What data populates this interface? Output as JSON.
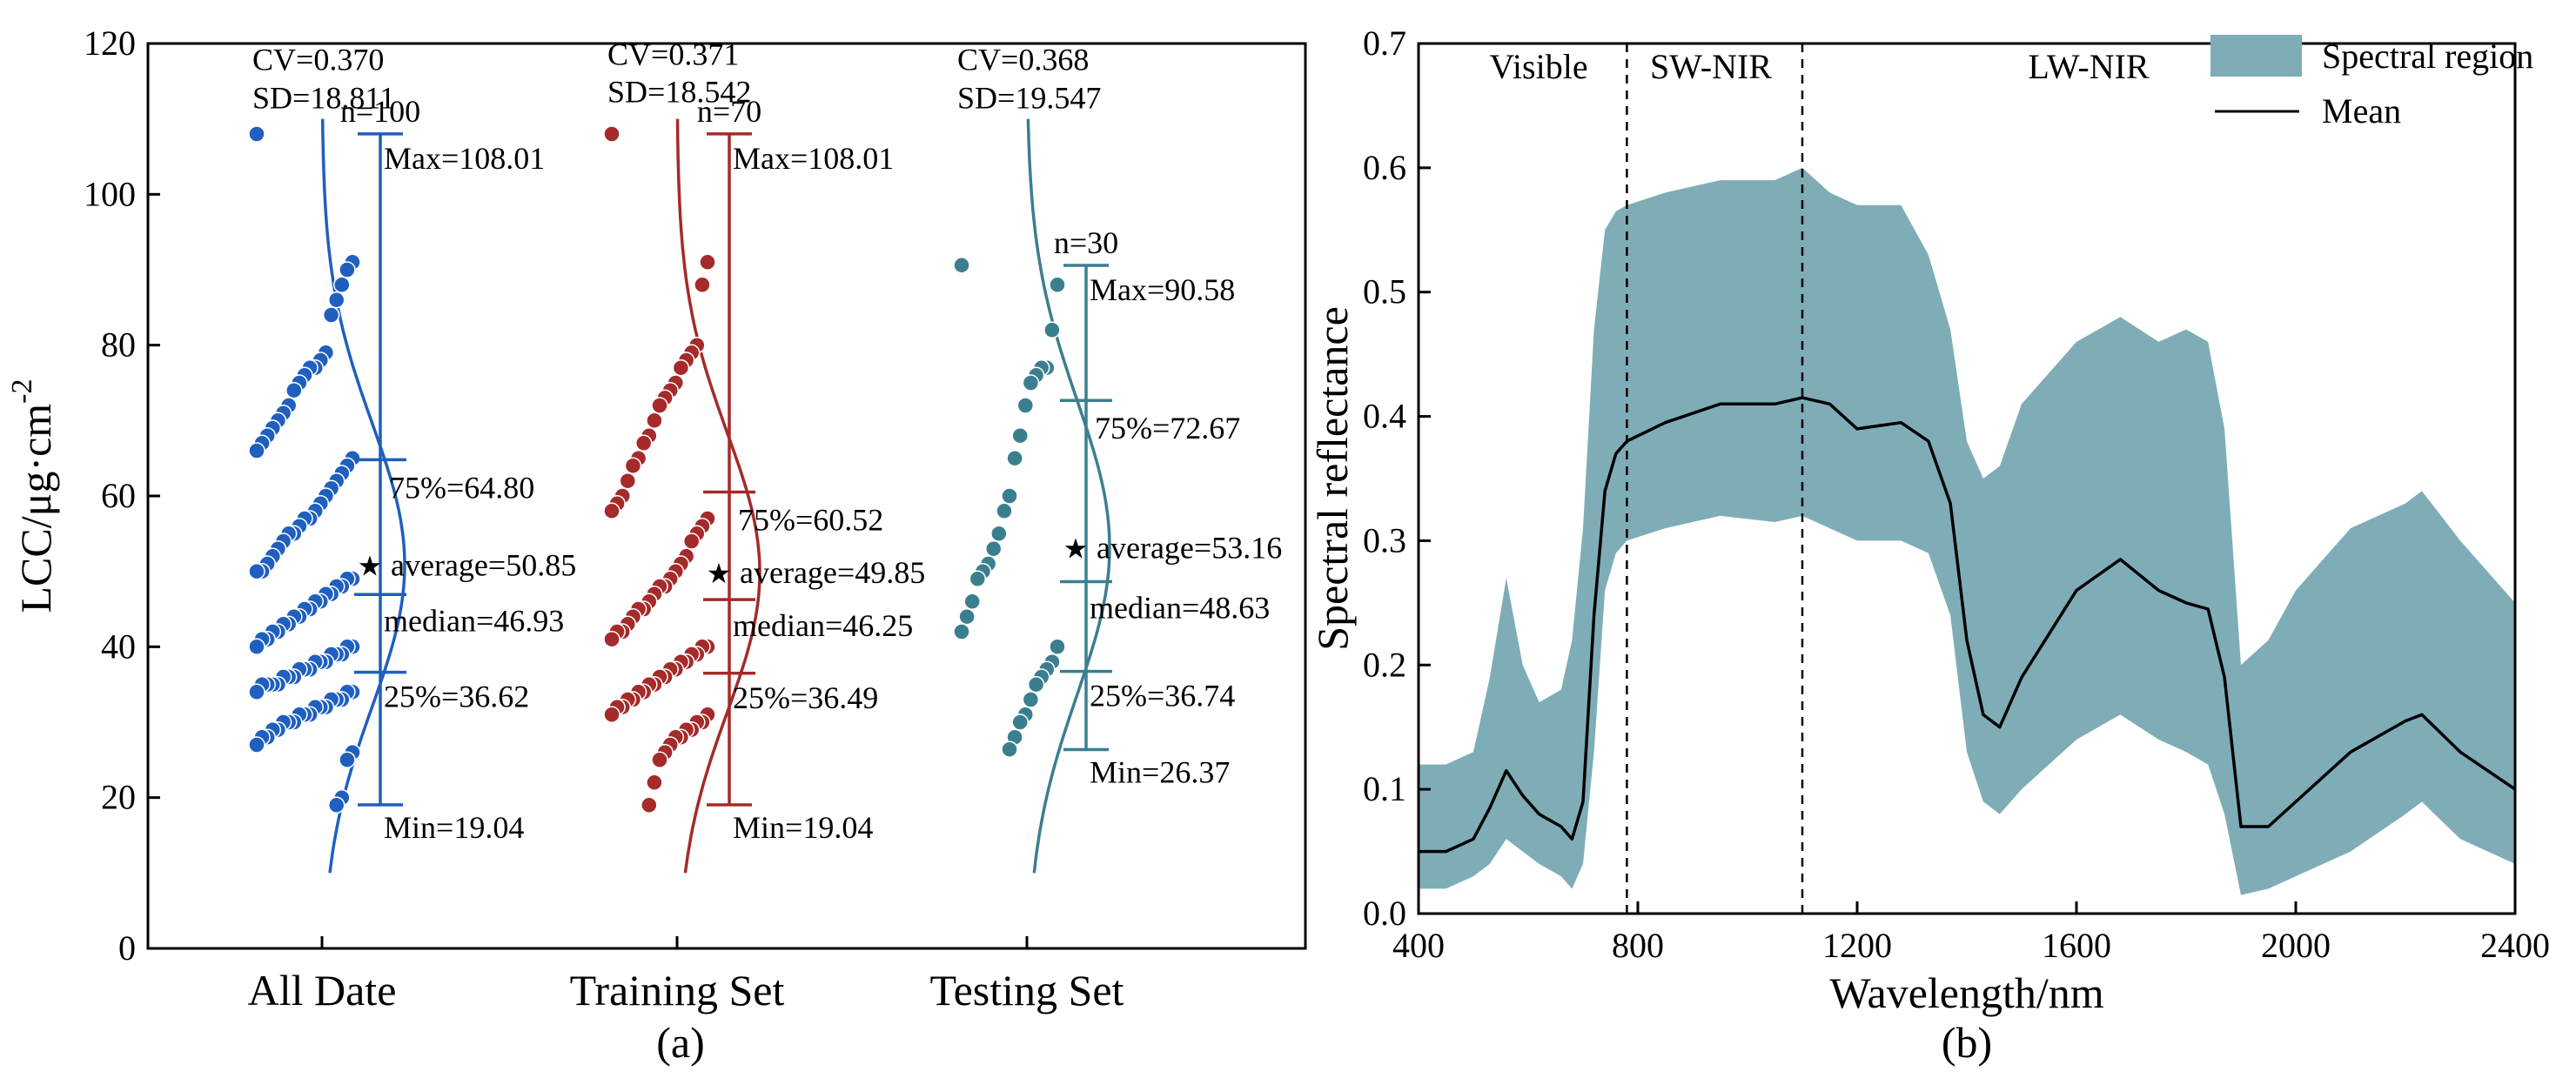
{
  "chart_data": [
    {
      "type": "scatter",
      "panel_label": "(a)",
      "ylabel": "LCC/μg·cm",
      "ylabel_sup": "-2",
      "ylim": [
        0,
        120
      ],
      "yticks": [
        0,
        20,
        40,
        60,
        80,
        100,
        120
      ],
      "categories": [
        "All Date",
        "Training Set",
        "Testing Set"
      ],
      "groups": [
        {
          "name": "All Date",
          "color": "#1f5fbf",
          "cv_label": "CV=0.370",
          "sd_label": "SD=18.811",
          "n_label": "n=100",
          "max": 108.01,
          "q3": 64.8,
          "mean": 50.85,
          "median": 46.93,
          "q1": 36.62,
          "min": 19.04,
          "max_label": "Max=108.01",
          "q3_label": "75%=64.80",
          "mean_label": "average=50.85",
          "median_label": "median=46.93",
          "q1_label": "25%=36.62",
          "min_label": "Min=19.04",
          "points": [
            108,
            91,
            90,
            88,
            86,
            84,
            79,
            78,
            77,
            77,
            76,
            75,
            74,
            72,
            71,
            70,
            69,
            68,
            67,
            66,
            65,
            64,
            63,
            62,
            61,
            60,
            59,
            58,
            57,
            57,
            56,
            55,
            55,
            54,
            53,
            52,
            51,
            50,
            50,
            49,
            49,
            48,
            48,
            47,
            47,
            46,
            46,
            45,
            45,
            44,
            44,
            43,
            43,
            42,
            42,
            41,
            41,
            40,
            40,
            40,
            39,
            39,
            39,
            38,
            38,
            38,
            37,
            37,
            37,
            36,
            36,
            36,
            35,
            35,
            35,
            35,
            34,
            34,
            34,
            33,
            33,
            33,
            32,
            32,
            32,
            31,
            31,
            31,
            30,
            30,
            30,
            29,
            29,
            28,
            28,
            27,
            26,
            25,
            20,
            19
          ]
        },
        {
          "name": "Training Set",
          "color": "#a52a2a",
          "cv_label": "CV=0.371",
          "sd_label": "SD=18.542",
          "n_label": "n=70",
          "max": 108.01,
          "q3": 60.52,
          "mean": 49.85,
          "median": 46.25,
          "q1": 36.49,
          "min": 19.04,
          "max_label": "Max=108.01",
          "q3_label": "75%=60.52",
          "mean_label": "average=49.85",
          "median_label": "median=46.25",
          "q1_label": "25%=36.49",
          "min_label": "Min=19.04",
          "points": [
            108,
            91,
            88,
            80,
            79,
            78,
            77,
            75,
            74,
            73,
            72,
            70,
            68,
            67,
            65,
            64,
            62,
            60,
            59,
            58,
            57,
            56,
            55,
            54,
            52,
            51,
            50,
            49,
            48,
            48,
            47,
            46,
            45,
            45,
            44,
            43,
            42,
            42,
            41,
            40,
            40,
            39,
            39,
            38,
            38,
            37,
            37,
            36,
            36,
            35,
            35,
            34,
            34,
            33,
            33,
            32,
            32,
            31,
            31,
            30,
            30,
            29,
            29,
            28,
            28,
            27,
            26,
            25,
            22,
            19
          ]
        },
        {
          "name": "Testing Set",
          "color": "#3b7f8f",
          "cv_label": "CV=0.368",
          "sd_label": "SD=19.547",
          "n_label": "n=30",
          "max": 90.58,
          "q3": 72.67,
          "mean": 53.16,
          "median": 48.63,
          "q1": 36.74,
          "min": 26.37,
          "max_label": "Max=90.58",
          "q3_label": "75%=72.67",
          "mean_label": "average=53.16",
          "median_label": "median=48.63",
          "q1_label": "25%=36.74",
          "min_label": "Min=26.37",
          "points": [
            90.6,
            88,
            82,
            77,
            77,
            76,
            75,
            72,
            68,
            65,
            60,
            58,
            55,
            53,
            51,
            50,
            49,
            46,
            44,
            42,
            40,
            38,
            37,
            36,
            35,
            33,
            31,
            30,
            28,
            26.4
          ]
        }
      ]
    },
    {
      "type": "area",
      "panel_label": "(b)",
      "xlabel": "Wavelength/nm",
      "ylabel": "Spectral reflectance",
      "xlim": [
        400,
        2400
      ],
      "ylim": [
        0,
        0.7
      ],
      "xticks": [
        400,
        800,
        1200,
        1600,
        2000,
        2400
      ],
      "yticks": [
        0.0,
        0.1,
        0.2,
        0.3,
        0.4,
        0.5,
        0.6,
        0.7
      ],
      "region_color": "#7fadb7",
      "mean_color": "#000000",
      "dividers": [
        780,
        1100
      ],
      "region_labels": [
        "Visible",
        "SW-NIR",
        "LW-NIR"
      ],
      "legend": {
        "position": "top-right",
        "entries": [
          "Spectral region",
          "Mean"
        ]
      },
      "x": [
        400,
        450,
        500,
        530,
        560,
        590,
        620,
        660,
        680,
        700,
        720,
        740,
        760,
        780,
        850,
        950,
        1050,
        1100,
        1150,
        1200,
        1280,
        1330,
        1370,
        1400,
        1430,
        1460,
        1500,
        1600,
        1680,
        1750,
        1800,
        1840,
        1870,
        1900,
        1950,
        2000,
        2100,
        2200,
        2230,
        2300,
        2400
      ],
      "upper": [
        0.12,
        0.12,
        0.13,
        0.19,
        0.27,
        0.2,
        0.17,
        0.18,
        0.22,
        0.31,
        0.47,
        0.55,
        0.565,
        0.57,
        0.58,
        0.59,
        0.59,
        0.6,
        0.58,
        0.57,
        0.57,
        0.53,
        0.47,
        0.38,
        0.35,
        0.36,
        0.41,
        0.46,
        0.48,
        0.46,
        0.47,
        0.46,
        0.39,
        0.2,
        0.22,
        0.26,
        0.31,
        0.33,
        0.34,
        0.3,
        0.25
      ],
      "mean": [
        0.05,
        0.05,
        0.06,
        0.085,
        0.115,
        0.095,
        0.08,
        0.07,
        0.06,
        0.09,
        0.24,
        0.34,
        0.37,
        0.38,
        0.395,
        0.41,
        0.41,
        0.415,
        0.41,
        0.39,
        0.395,
        0.38,
        0.33,
        0.22,
        0.16,
        0.15,
        0.19,
        0.26,
        0.285,
        0.26,
        0.25,
        0.245,
        0.19,
        0.07,
        0.07,
        0.09,
        0.13,
        0.155,
        0.16,
        0.13,
        0.1
      ],
      "lower": [
        0.02,
        0.02,
        0.03,
        0.04,
        0.06,
        0.05,
        0.04,
        0.03,
        0.02,
        0.04,
        0.13,
        0.26,
        0.29,
        0.3,
        0.31,
        0.32,
        0.315,
        0.32,
        0.31,
        0.3,
        0.3,
        0.29,
        0.24,
        0.13,
        0.09,
        0.08,
        0.1,
        0.14,
        0.16,
        0.14,
        0.13,
        0.12,
        0.08,
        0.015,
        0.02,
        0.03,
        0.05,
        0.08,
        0.09,
        0.06,
        0.04
      ]
    }
  ]
}
